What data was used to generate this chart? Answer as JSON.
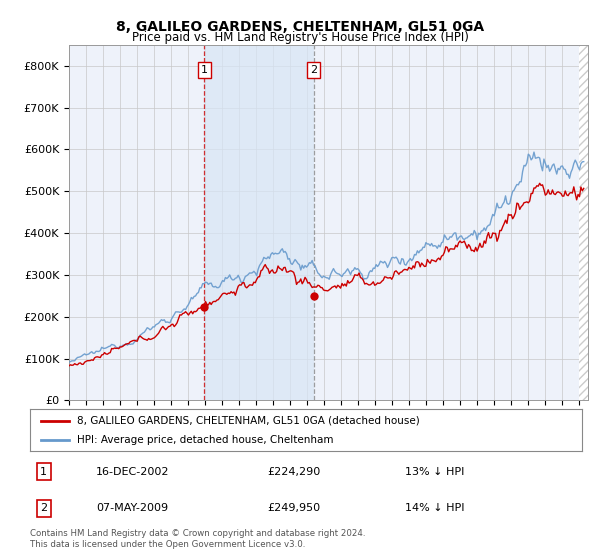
{
  "title": "8, GALILEO GARDENS, CHELTENHAM, GL51 0GA",
  "subtitle": "Price paid vs. HM Land Registry's House Price Index (HPI)",
  "ylabel_ticks": [
    "£0",
    "£100K",
    "£200K",
    "£300K",
    "£400K",
    "£500K",
    "£600K",
    "£700K",
    "£800K"
  ],
  "ytick_vals": [
    0,
    100000,
    200000,
    300000,
    400000,
    500000,
    600000,
    700000,
    800000
  ],
  "ylim": [
    0,
    850000
  ],
  "xlim_start": 1995.0,
  "xlim_end": 2025.5,
  "purchase1_x": 2002.96,
  "purchase1_y": 224290,
  "purchase2_x": 2009.37,
  "purchase2_y": 249950,
  "line1_color": "#cc0000",
  "line2_color": "#6699cc",
  "shade_color": "#dde8f5",
  "hatch_color": "#cccccc",
  "legend_line1": "8, GALILEO GARDENS, CHELTENHAM, GL51 0GA (detached house)",
  "legend_line2": "HPI: Average price, detached house, Cheltenham",
  "purchase1_date": "16-DEC-2002",
  "purchase1_price": "£224,290",
  "purchase1_hpi": "13% ↓ HPI",
  "purchase2_date": "07-MAY-2009",
  "purchase2_price": "£249,950",
  "purchase2_hpi": "14% ↓ HPI",
  "footer": "Contains HM Land Registry data © Crown copyright and database right 2024.\nThis data is licensed under the Open Government Licence v3.0."
}
